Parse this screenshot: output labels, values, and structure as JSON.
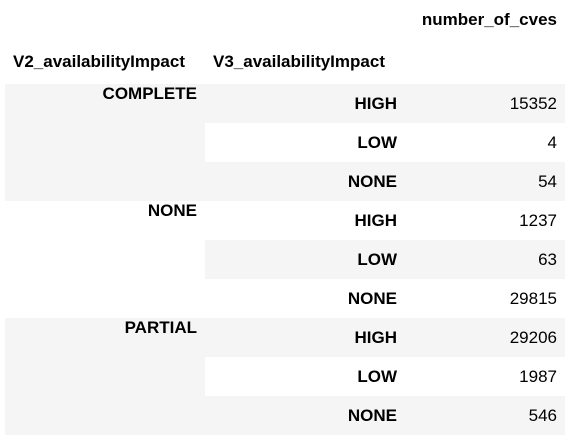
{
  "table": {
    "value_header": "number_of_cves",
    "index_headers": [
      "V2_availabilityImpact",
      "V3_availabilityImpact"
    ],
    "groups": [
      {
        "v2": "COMPLETE",
        "rows": [
          {
            "v3": "HIGH",
            "count": "15352"
          },
          {
            "v3": "LOW",
            "count": "4"
          },
          {
            "v3": "NONE",
            "count": "54"
          }
        ]
      },
      {
        "v2": "NONE",
        "rows": [
          {
            "v3": "HIGH",
            "count": "1237"
          },
          {
            "v3": "LOW",
            "count": "63"
          },
          {
            "v3": "NONE",
            "count": "29815"
          }
        ]
      },
      {
        "v2": "PARTIAL",
        "rows": [
          {
            "v3": "HIGH",
            "count": "29206"
          },
          {
            "v3": "LOW",
            "count": "1987"
          },
          {
            "v3": "NONE",
            "count": "546"
          }
        ]
      }
    ]
  },
  "colors": {
    "stripe": "#f5f5f5",
    "background": "#ffffff",
    "text": "#000000"
  }
}
